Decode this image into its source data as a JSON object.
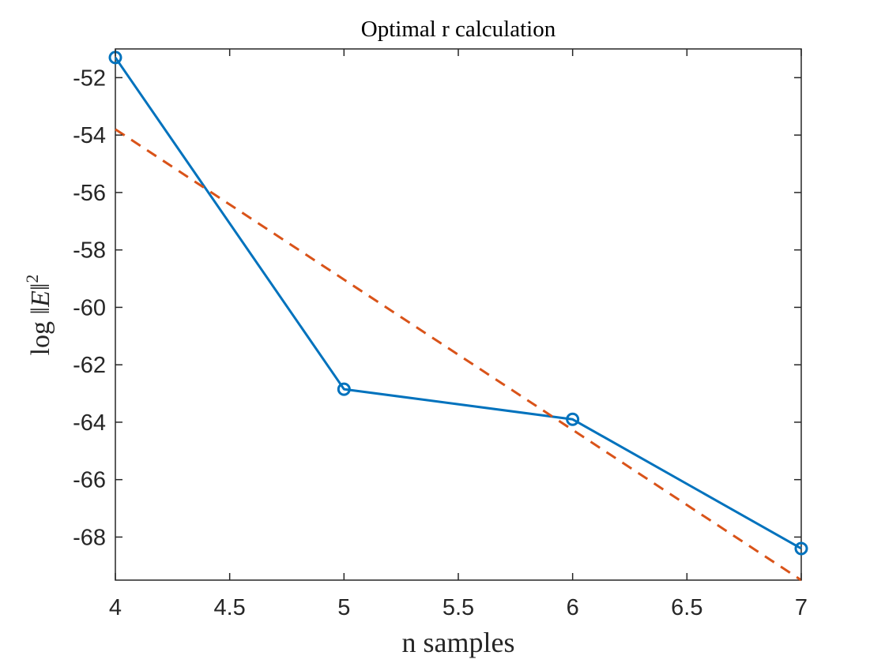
{
  "chart_data": {
    "type": "line",
    "title": "Optimal r calculation",
    "xlabel": "n samples",
    "ylabel": {
      "prefix": "log ‖",
      "var": "E",
      "suffix": "‖",
      "sup": "2"
    },
    "xlim": [
      4,
      7
    ],
    "ylim": [
      -69.5,
      -51
    ],
    "xticks": [
      4,
      4.5,
      5,
      5.5,
      6,
      6.5,
      7
    ],
    "xtick_labels": [
      "4",
      "4.5",
      "5",
      "5.5",
      "6",
      "6.5",
      "7"
    ],
    "yticks": [
      -52,
      -54,
      -56,
      -58,
      -60,
      -62,
      -64,
      -66,
      -68
    ],
    "ytick_labels": [
      "-52",
      "-54",
      "-56",
      "-58",
      "-60",
      "-62",
      "-64",
      "-66",
      "-68"
    ],
    "grid": false,
    "series": [
      {
        "style": "solid",
        "marker": "circle",
        "color": "#0072BD",
        "x": [
          4,
          5,
          6,
          7
        ],
        "y": [
          -51.3,
          -62.85,
          -63.9,
          -68.4
        ]
      },
      {
        "style": "dashed",
        "marker": "none",
        "color": "#D95319",
        "x": [
          4,
          7
        ],
        "y": [
          -53.8,
          -69.5
        ]
      }
    ]
  }
}
